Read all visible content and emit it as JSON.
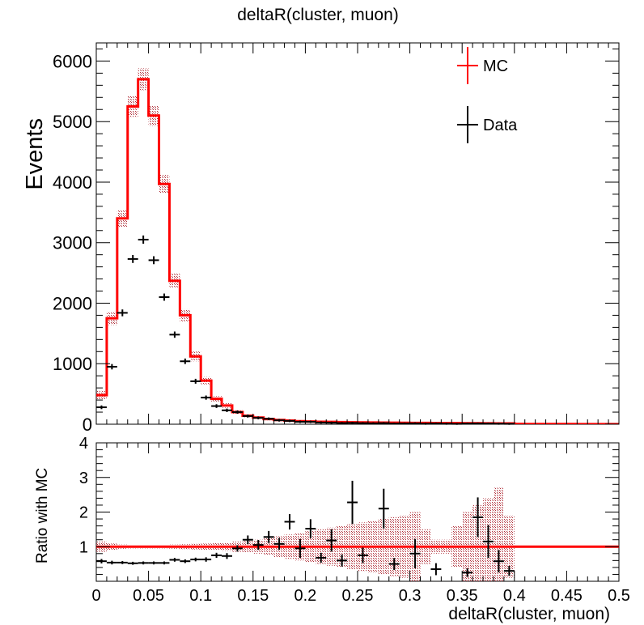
{
  "chart_data": [
    {
      "type": "step",
      "title": "deltaR(cluster, muon)",
      "ylabel": "Events",
      "xlabel": "",
      "xlim": [
        0,
        0.5
      ],
      "ylim": [
        0,
        6300
      ],
      "bin_width": 0.01,
      "xticks": [
        0,
        0.05,
        0.1,
        0.15,
        0.2,
        0.25,
        0.3,
        0.35,
        0.4,
        0.45,
        0.5
      ],
      "xtick_labels": [
        "0",
        "0.05",
        "0.1",
        "0.15",
        "0.2",
        "0.25",
        "0.3",
        "0.35",
        "0.4",
        "0.45",
        "0.5"
      ],
      "yticks": [
        0,
        1000,
        2000,
        3000,
        4000,
        5000,
        6000
      ],
      "ytick_labels": [
        "0",
        "1000",
        "2000",
        "3000",
        "4000",
        "5000",
        "6000"
      ],
      "legend_placement": "top-right",
      "colors": {
        "mc": "#ff0000",
        "band": "#b0303a",
        "data": "#000000"
      },
      "series": [
        {
          "name": "MC",
          "style": "step-with-uncertainty-band",
          "x": [
            0.005,
            0.015,
            0.025,
            0.035,
            0.045,
            0.055,
            0.065,
            0.075,
            0.085,
            0.095,
            0.105,
            0.115,
            0.125,
            0.135,
            0.145,
            0.155,
            0.165,
            0.175,
            0.185,
            0.195,
            0.205,
            0.215,
            0.225,
            0.235,
            0.245,
            0.255,
            0.265,
            0.275,
            0.285,
            0.295,
            0.305,
            0.315,
            0.325,
            0.335,
            0.345,
            0.355,
            0.365,
            0.375,
            0.385,
            0.395,
            0.405,
            0.415,
            0.425,
            0.435,
            0.445,
            0.455,
            0.465,
            0.475,
            0.485,
            0.495
          ],
          "values": [
            480,
            1750,
            3400,
            5250,
            5700,
            5100,
            3970,
            2370,
            1800,
            1120,
            720,
            420,
            310,
            200,
            140,
            110,
            85,
            70,
            60,
            50,
            45,
            40,
            38,
            35,
            32,
            30,
            28,
            26,
            25,
            24,
            22,
            21,
            20,
            19,
            18,
            17,
            16,
            15,
            14,
            14,
            5,
            4,
            4,
            3,
            3,
            3,
            2,
            2,
            2,
            2
          ],
          "uncertainty": [
            70,
            110,
            140,
            170,
            180,
            170,
            150,
            120,
            100,
            80,
            60,
            45,
            38,
            30,
            25,
            22,
            20,
            18,
            16,
            15,
            14,
            13,
            13,
            13,
            12,
            12,
            12,
            12,
            11,
            11,
            11,
            11,
            10,
            10,
            10,
            10,
            10,
            10,
            10,
            10,
            3,
            3,
            3,
            2,
            2,
            2,
            2,
            2,
            2,
            2
          ]
        },
        {
          "name": "Data",
          "style": "points-with-errorbars",
          "x": [
            0.005,
            0.015,
            0.025,
            0.035,
            0.045,
            0.055,
            0.065,
            0.075,
            0.085,
            0.095,
            0.105,
            0.115,
            0.125,
            0.135,
            0.145,
            0.155,
            0.165,
            0.175,
            0.185,
            0.195,
            0.205,
            0.215,
            0.225,
            0.235,
            0.245,
            0.255,
            0.265,
            0.275,
            0.285,
            0.295,
            0.305,
            0.315,
            0.325,
            0.335,
            0.345,
            0.355,
            0.365,
            0.375,
            0.385,
            0.395
          ],
          "values": [
            280,
            950,
            1840,
            2730,
            3050,
            2710,
            2100,
            1480,
            1040,
            710,
            440,
            300,
            230,
            200,
            135,
            105,
            90,
            65,
            55,
            40,
            40,
            28,
            25,
            20,
            22,
            18,
            15,
            18,
            10,
            12,
            14,
            8,
            12,
            8,
            6,
            10,
            12,
            10,
            8,
            6
          ],
          "errors": [
            17,
            31,
            43,
            52,
            55,
            52,
            46,
            38,
            32,
            27,
            21,
            17,
            15,
            14,
            12,
            10,
            9,
            8,
            7,
            6,
            6,
            5,
            5,
            4,
            5,
            4,
            4,
            4,
            3,
            3,
            4,
            3,
            3,
            3,
            2,
            3,
            3,
            3,
            3,
            2
          ]
        }
      ]
    },
    {
      "type": "ratio",
      "ylabel": "Ratio with MC",
      "xlabel": "deltaR(cluster, muon)",
      "xlim": [
        0,
        0.5
      ],
      "ylim": [
        0,
        4
      ],
      "reference_line": 1,
      "xticks": [
        0,
        0.05,
        0.1,
        0.15,
        0.2,
        0.25,
        0.3,
        0.35,
        0.4,
        0.45,
        0.5
      ],
      "xtick_labels": [
        "0",
        "0.05",
        "0.1",
        "0.15",
        "0.2",
        "0.25",
        "0.3",
        "0.35",
        "0.4",
        "0.45",
        "0.5"
      ],
      "yticks": [
        1,
        2,
        3,
        4
      ],
      "ytick_labels": [
        "1",
        "2",
        "3",
        "4"
      ],
      "colors": {
        "line": "#ff0000",
        "band": "#b0303a",
        "points": "#000000"
      },
      "band_halfwidth": [
        0.15,
        0.09,
        0.06,
        0.05,
        0.05,
        0.05,
        0.05,
        0.06,
        0.07,
        0.08,
        0.09,
        0.1,
        0.12,
        0.15,
        0.18,
        0.2,
        0.25,
        0.3,
        0.35,
        0.4,
        0.45,
        0.5,
        0.55,
        0.6,
        0.65,
        0.7,
        0.75,
        0.8,
        0.85,
        0.9,
        1.0,
        0.5,
        0.2,
        0.2,
        0.6,
        1.0,
        1.2,
        1.4,
        1.7,
        0.9
      ],
      "x": [
        0.005,
        0.015,
        0.025,
        0.035,
        0.045,
        0.055,
        0.065,
        0.075,
        0.085,
        0.095,
        0.105,
        0.115,
        0.125,
        0.135,
        0.145,
        0.155,
        0.165,
        0.175,
        0.185,
        0.195,
        0.205,
        0.215,
        0.225,
        0.235,
        0.245,
        0.255,
        0.265,
        0.275,
        0.285,
        0.295,
        0.305,
        0.315,
        0.325,
        0.335,
        0.345,
        0.355,
        0.365,
        0.375,
        0.385,
        0.395
      ],
      "values": [
        0.58,
        0.54,
        0.54,
        0.52,
        0.53,
        0.53,
        0.53,
        0.62,
        0.58,
        0.63,
        0.63,
        0.75,
        0.73,
        0.95,
        1.2,
        1.05,
        1.28,
        1.08,
        1.72,
        0.95,
        1.52,
        0.68,
        1.18,
        0.6,
        2.28,
        0.75,
        0.0,
        2.1,
        0.5,
        0.0,
        0.8,
        0.0,
        0.35,
        0.0,
        0.0,
        0.25,
        1.85,
        1.15,
        0.58,
        0.3
      ],
      "errors": [
        0.04,
        0.03,
        0.02,
        0.02,
        0.02,
        0.02,
        0.02,
        0.03,
        0.03,
        0.03,
        0.04,
        0.05,
        0.06,
        0.07,
        0.1,
        0.12,
        0.15,
        0.15,
        0.2,
        0.25,
        0.25,
        0.12,
        0.3,
        0.15,
        0.6,
        0.2,
        0.0,
        0.55,
        0.15,
        0.0,
        0.4,
        0.0,
        0.15,
        0.0,
        0.0,
        0.1,
        0.55,
        0.45,
        0.3,
        0.12
      ],
      "points_shown": [
        true,
        true,
        true,
        true,
        true,
        true,
        true,
        true,
        true,
        true,
        true,
        true,
        true,
        true,
        true,
        true,
        true,
        true,
        true,
        true,
        true,
        true,
        true,
        true,
        true,
        true,
        false,
        true,
        true,
        false,
        true,
        false,
        true,
        false,
        false,
        true,
        true,
        true,
        true,
        true
      ]
    }
  ]
}
